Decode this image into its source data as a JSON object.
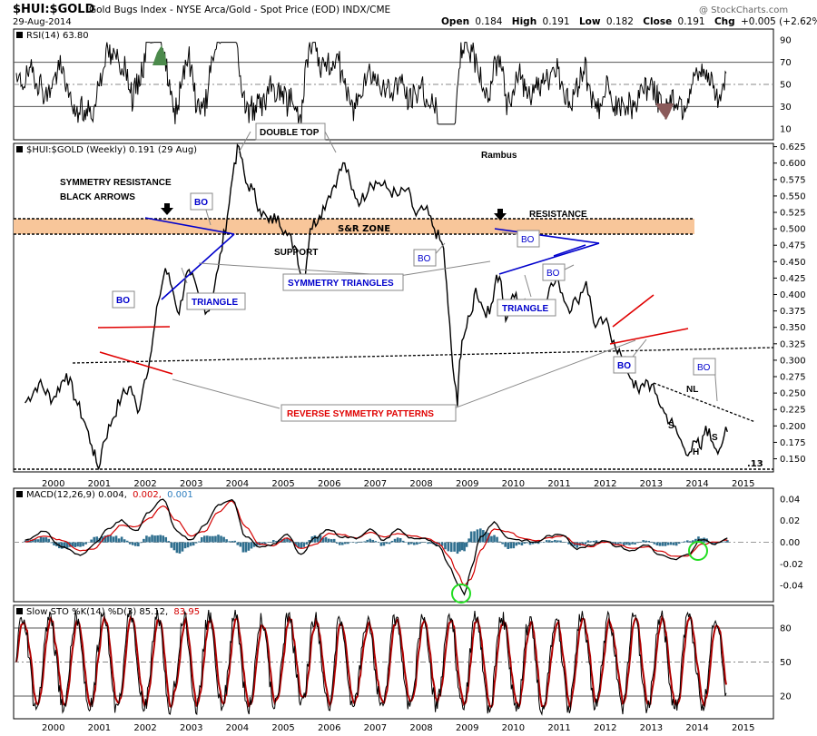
{
  "header": {
    "symbol": "$HUI:$GOLD",
    "description": "Gold Bugs Index - NYSE Arca/Gold - Spot Price (EOD) INDX/CME",
    "date": "29-Aug-2014",
    "watermark": "@ StockCharts.com",
    "ohlc": {
      "open_label": "Open",
      "open": "0.184",
      "high_label": "High",
      "high": "0.191",
      "low_label": "Low",
      "low": "0.182",
      "close_label": "Close",
      "close": "0.191",
      "chg_label": "Chg",
      "chg": "+0.005 (+2.62%)"
    }
  },
  "colors": {
    "price_line": "#000000",
    "sr_zone": "#f8c69a",
    "trend_red": "#e00000",
    "triangle_blue": "#0000cc",
    "macd_hist": "#2f6f8f",
    "signal_red": "#d40000",
    "circle_green": "#22dd22",
    "rsi_over": "#4c8a4c",
    "rsi_under": "#8a5a5a"
  },
  "x_years": [
    "2000",
    "2001",
    "2002",
    "2003",
    "2004",
    "2005",
    "2006",
    "2007",
    "2008",
    "2009",
    "2010",
    "2011",
    "2012",
    "2013",
    "2014",
    "2015"
  ],
  "chart_data": [
    {
      "panel": "rsi",
      "type": "line",
      "legend": "RSI(14) 63.80",
      "ylim": [
        0,
        100
      ],
      "ticks": [
        "90",
        "70",
        "50",
        "30",
        "10"
      ],
      "tick_values": [
        90,
        70,
        50,
        30,
        10
      ],
      "guides": [
        70,
        50,
        30
      ]
    },
    {
      "panel": "price",
      "type": "line",
      "title": "Gold Bugs Index - NYSE Arca/Gold - Spot Price (EOD)",
      "legend": "$HUI:$GOLD (Weekly) 0.191 (29 Aug)",
      "ylim": [
        0.13,
        0.63
      ],
      "ticks": [
        "0.625",
        "0.600",
        "0.575",
        "0.550",
        "0.525",
        "0.500",
        "0.475",
        "0.450",
        "0.425",
        "0.400",
        "0.375",
        "0.350",
        "0.325",
        "0.300",
        "0.275",
        "0.250",
        "0.225",
        "0.200",
        "0.175",
        "0.150"
      ],
      "tick_values": [
        0.625,
        0.6,
        0.575,
        0.55,
        0.525,
        0.5,
        0.475,
        0.45,
        0.425,
        0.4,
        0.375,
        0.35,
        0.325,
        0.3,
        0.275,
        0.25,
        0.225,
        0.2,
        0.175,
        0.15
      ],
      "x": [
        1999.4,
        1999.7,
        2000.0,
        2000.3,
        2000.5,
        2000.7,
        2000.85,
        2000.95,
        2001.0,
        2001.1,
        2001.3,
        2001.5,
        2001.7,
        2001.85,
        2002.0,
        2002.15,
        2002.3,
        2002.45,
        2002.6,
        2002.75,
        2002.9,
        2003.0,
        2003.2,
        2003.4,
        2003.6,
        2003.8,
        2003.95,
        2004.05,
        2004.2,
        2004.35,
        2004.5,
        2004.7,
        2004.9,
        2005.1,
        2005.3,
        2005.45,
        2005.6,
        2005.8,
        2006.0,
        2006.2,
        2006.35,
        2006.5,
        2006.7,
        2006.9,
        2007.1,
        2007.3,
        2007.5,
        2007.7,
        2007.9,
        2008.1,
        2008.3,
        2008.5,
        2008.6,
        2008.7,
        2008.8,
        2008.85,
        2008.9,
        2009.0,
        2009.1,
        2009.2,
        2009.35,
        2009.5,
        2009.65,
        2009.75,
        2009.85,
        2010.0,
        2010.15,
        2010.3,
        2010.45,
        2010.6,
        2010.8,
        2011.0,
        2011.2,
        2011.4,
        2011.6,
        2011.8,
        2012.0,
        2012.2,
        2012.4,
        2012.6,
        2012.75,
        2012.9,
        2013.1,
        2013.3,
        2013.5,
        2013.7,
        2013.85,
        2014.0,
        2014.1,
        2014.2,
        2014.35,
        2014.5,
        2014.6,
        2014.67
      ],
      "values": [
        0.235,
        0.265,
        0.24,
        0.28,
        0.24,
        0.205,
        0.17,
        0.145,
        0.135,
        0.175,
        0.21,
        0.245,
        0.26,
        0.22,
        0.27,
        0.315,
        0.39,
        0.44,
        0.41,
        0.37,
        0.43,
        0.43,
        0.39,
        0.375,
        0.44,
        0.52,
        0.6,
        0.625,
        0.57,
        0.56,
        0.53,
        0.51,
        0.52,
        0.49,
        0.47,
        0.41,
        0.5,
        0.52,
        0.55,
        0.58,
        0.6,
        0.56,
        0.54,
        0.57,
        0.57,
        0.56,
        0.55,
        0.56,
        0.52,
        0.53,
        0.5,
        0.47,
        0.38,
        0.29,
        0.23,
        0.3,
        0.33,
        0.35,
        0.37,
        0.41,
        0.38,
        0.37,
        0.43,
        0.42,
        0.36,
        0.4,
        0.39,
        0.38,
        0.39,
        0.38,
        0.41,
        0.42,
        0.38,
        0.39,
        0.42,
        0.35,
        0.36,
        0.33,
        0.3,
        0.27,
        0.25,
        0.27,
        0.25,
        0.22,
        0.2,
        0.17,
        0.16,
        0.175,
        0.165,
        0.2,
        0.175,
        0.165,
        0.185,
        0.191
      ],
      "annotations": [
        "DOUBLE TOP",
        "SYMMETRY RESISTANCE",
        "BLACK ARROWS",
        "Rambus",
        "BO",
        "BO",
        "BO",
        "BO",
        "BO",
        "BO",
        "BO",
        "S&R ZONE",
        "SUPPORT",
        "RESISTANCE",
        "TRIANGLE",
        "TRIANGLE",
        "SYMMETRY TRIANGLES",
        "REVERSE SYMMETRY PATTERNS",
        "NL",
        "S",
        "H",
        "S",
        ".13"
      ]
    },
    {
      "panel": "macd",
      "type": "line",
      "legend_prefix": "MACD(12,26,9) 0.004,",
      "legend_signal": "0.002,",
      "legend_hist": "0.001",
      "ylim": [
        -0.055,
        0.05
      ],
      "ticks": [
        "0.04",
        "0.02",
        "0.00",
        "-0.02",
        "-0.04"
      ],
      "tick_values": [
        0.04,
        0.02,
        0.0,
        -0.02,
        -0.04
      ],
      "x": [
        1999.4,
        1999.8,
        2000.2,
        2000.6,
        2000.9,
        2001.2,
        2001.5,
        2001.8,
        2002.1,
        2002.4,
        2002.7,
        2003.0,
        2003.3,
        2003.6,
        2003.9,
        2004.2,
        2004.5,
        2004.8,
        2005.1,
        2005.4,
        2005.7,
        2006.0,
        2006.3,
        2006.6,
        2006.9,
        2007.2,
        2007.5,
        2007.8,
        2008.1,
        2008.4,
        2008.6,
        2008.8,
        2008.95,
        2009.1,
        2009.3,
        2009.6,
        2009.9,
        2010.2,
        2010.5,
        2010.8,
        2011.1,
        2011.4,
        2011.7,
        2012.0,
        2012.3,
        2012.6,
        2012.9,
        2013.2,
        2013.5,
        2013.8,
        2014.1,
        2014.4,
        2014.67
      ],
      "values": [
        0.002,
        0.01,
        -0.004,
        -0.012,
        -0.002,
        0.012,
        0.02,
        0.01,
        0.028,
        0.04,
        0.01,
        0.002,
        0.015,
        0.035,
        0.04,
        0.005,
        -0.005,
        -0.002,
        0.008,
        -0.012,
        0.004,
        0.012,
        0.005,
        0.004,
        0.012,
        0.002,
        0.012,
        0.004,
        0.003,
        -0.004,
        -0.02,
        -0.038,
        -0.048,
        -0.025,
        0.005,
        0.018,
        0.004,
        0.002,
        0.0,
        0.006,
        0.007,
        -0.006,
        -0.003,
        0.002,
        -0.004,
        -0.008,
        -0.002,
        -0.012,
        -0.016,
        -0.012,
        0.003,
        -0.002,
        0.004
      ],
      "signal": [
        0.0,
        0.006,
        0.002,
        -0.008,
        -0.006,
        0.006,
        0.016,
        0.014,
        0.022,
        0.034,
        0.02,
        0.006,
        0.01,
        0.028,
        0.038,
        0.014,
        -0.002,
        -0.003,
        0.004,
        -0.006,
        -0.002,
        0.008,
        0.007,
        0.004,
        0.009,
        0.005,
        0.008,
        0.006,
        0.004,
        -0.001,
        -0.012,
        -0.028,
        -0.04,
        -0.034,
        -0.008,
        0.012,
        0.01,
        0.004,
        0.001,
        0.004,
        0.006,
        -0.002,
        -0.004,
        0.0,
        -0.002,
        -0.006,
        -0.004,
        -0.008,
        -0.013,
        -0.013,
        -0.002,
        0.0,
        0.002
      ]
    },
    {
      "panel": "sto",
      "type": "line",
      "legend_prefix": "Slow STO %K(14) %D(3) 85.12,",
      "legend_d": "83.95",
      "ylim": [
        0,
        100
      ],
      "ticks": [
        "80",
        "50",
        "20"
      ],
      "tick_values": [
        80,
        50,
        20
      ],
      "guides": [
        80,
        50,
        20
      ]
    }
  ]
}
